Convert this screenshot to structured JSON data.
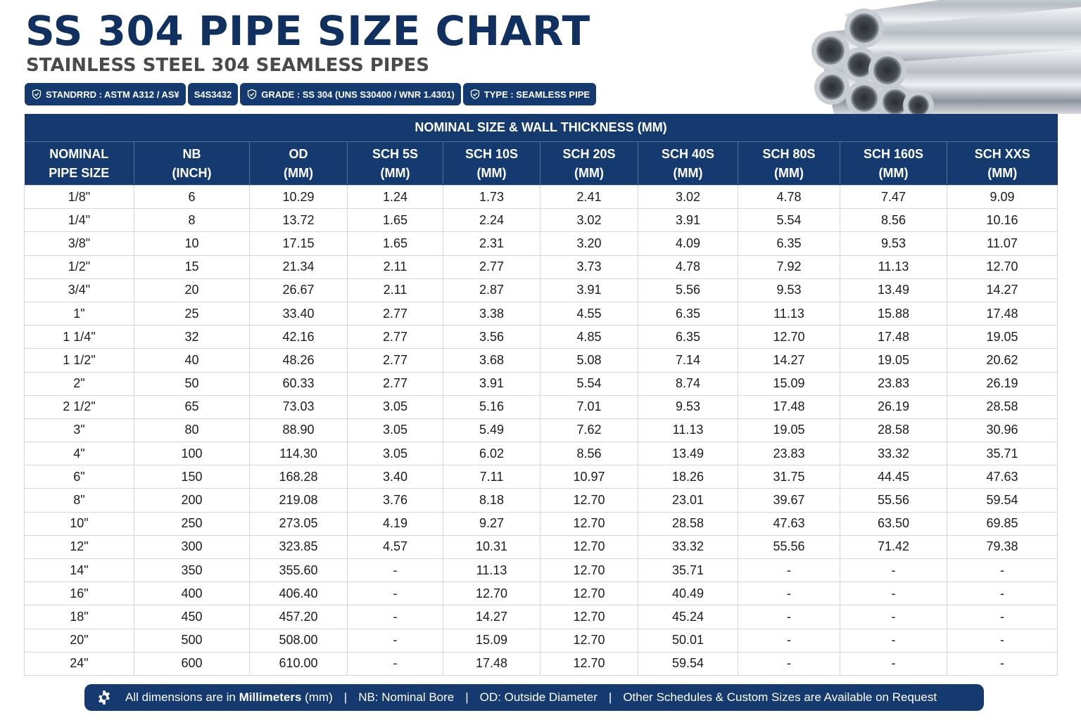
{
  "header": {
    "title": "SS 304 PIPE SIZE CHART",
    "subtitle": "STAINLESS STEEL 304 SEAMLESS PIPES"
  },
  "badges": [
    {
      "icon": "shield-check-icon",
      "label": "STANDRRD : ASTM A312 / AS¥"
    },
    {
      "icon": "",
      "label": "S4S3432"
    },
    {
      "icon": "shield-check-icon",
      "label": "GRADE : SS 304 (UNS S30400 / WNR 1.4301)"
    },
    {
      "icon": "shield-check-icon",
      "label": "TYPE : SEAMLESS PIPE"
    }
  ],
  "table": {
    "group_header": "NOMINAL SIZE & WALL THICKNESS (MM)",
    "columns": [
      {
        "line1": "NOMINAL",
        "line2": "PIPE SIZE"
      },
      {
        "line1": "NB",
        "line2": "(INCH)"
      },
      {
        "line1": "OD",
        "line2": "(MM)"
      },
      {
        "line1": "SCH 5S",
        "line2": "(MM)"
      },
      {
        "line1": "SCH 10S",
        "line2": "(MM)"
      },
      {
        "line1": "SCH 20S",
        "line2": "(MM)"
      },
      {
        "line1": "SCH 40S",
        "line2": "(MM)"
      },
      {
        "line1": "SCH 80S",
        "line2": "(MM)"
      },
      {
        "line1": "SCH 160S",
        "line2": "(MM)"
      },
      {
        "line1": "SCH XXS",
        "line2": "(MM)"
      }
    ],
    "rows": [
      [
        "1/8\"",
        "6",
        "10.29",
        "1.24",
        "1.73",
        "2.41",
        "3.02",
        "4.78",
        "7.47",
        "9.09"
      ],
      [
        "1/4\"",
        "8",
        "13.72",
        "1.65",
        "2.24",
        "3.02",
        "3.91",
        "5.54",
        "8.56",
        "10.16"
      ],
      [
        "3/8\"",
        "10",
        "17.15",
        "1.65",
        "2.31",
        "3.20",
        "4.09",
        "6.35",
        "9.53",
        "11.07"
      ],
      [
        "1/2\"",
        "15",
        "21.34",
        "2.11",
        "2.77",
        "3.73",
        "4.78",
        "7.92",
        "11.13",
        "12.70"
      ],
      [
        "3/4\"",
        "20",
        "26.67",
        "2.11",
        "2.87",
        "3.91",
        "5.56",
        "9.53",
        "13.49",
        "14.27"
      ],
      [
        "1\"",
        "25",
        "33.40",
        "2.77",
        "3.38",
        "4.55",
        "6.35",
        "11.13",
        "15.88",
        "17.48"
      ],
      [
        "1 1/4\"",
        "32",
        "42.16",
        "2.77",
        "3.56",
        "4.85",
        "6.35",
        "12.70",
        "17.48",
        "19.05"
      ],
      [
        "1 1/2\"",
        "40",
        "48.26",
        "2.77",
        "3.68",
        "5.08",
        "7.14",
        "14.27",
        "19.05",
        "20.62"
      ],
      [
        "2\"",
        "50",
        "60.33",
        "2.77",
        "3.91",
        "5.54",
        "8.74",
        "15.09",
        "23.83",
        "26.19"
      ],
      [
        "2 1/2\"",
        "65",
        "73.03",
        "3.05",
        "5.16",
        "7.01",
        "9.53",
        "17.48",
        "26.19",
        "28.58"
      ],
      [
        "3\"",
        "80",
        "88.90",
        "3.05",
        "5.49",
        "7.62",
        "11.13",
        "19.05",
        "28.58",
        "30.96"
      ],
      [
        "4\"",
        "100",
        "114.30",
        "3.05",
        "6.02",
        "8.56",
        "13.49",
        "23.83",
        "33.32",
        "35.71"
      ],
      [
        "6\"",
        "150",
        "168.28",
        "3.40",
        "7.11",
        "10.97",
        "18.26",
        "31.75",
        "44.45",
        "47.63"
      ],
      [
        "8\"",
        "200",
        "219.08",
        "3.76",
        "8.18",
        "12.70",
        "23.01",
        "39.67",
        "55.56",
        "59.54"
      ],
      [
        "10\"",
        "250",
        "273.05",
        "4.19",
        "9.27",
        "12.70",
        "28.58",
        "47.63",
        "63.50",
        "69.85"
      ],
      [
        "12\"",
        "300",
        "323.85",
        "4.57",
        "10.31",
        "12.70",
        "33.32",
        "55.56",
        "71.42",
        "79.38"
      ],
      [
        "14\"",
        "350",
        "355.60",
        "-",
        "11.13",
        "12.70",
        "35.71",
        "-",
        "-",
        "-"
      ],
      [
        "16\"",
        "400",
        "406.40",
        "-",
        "12.70",
        "12.70",
        "40.49",
        "-",
        "-",
        "-"
      ],
      [
        "18\"",
        "450",
        "457.20",
        "-",
        "14.27",
        "12.70",
        "45.24",
        "-",
        "-",
        "-"
      ],
      [
        "20\"",
        "500",
        "508.00",
        "-",
        "15.09",
        "12.70",
        "50.01",
        "-",
        "-",
        "-"
      ],
      [
        "24\"",
        "600",
        "610.00",
        "-",
        "17.48",
        "12.70",
        "59.54",
        "-",
        "-",
        "-"
      ]
    ]
  },
  "footer": {
    "icon": "gear-icon",
    "part1_prefix": "All dimensions are in ",
    "part1_bold": "Millimeters",
    "part1_suffix": " (mm)",
    "part2": "NB: Nominal Bore",
    "part3": "OD: Outside Diameter",
    "part4": "Other Schedules & Custom Sizes are Available on Request",
    "separator": "|"
  },
  "colors": {
    "navy": "#143a70",
    "title": "#10305f",
    "grid": "#d3d6db"
  }
}
